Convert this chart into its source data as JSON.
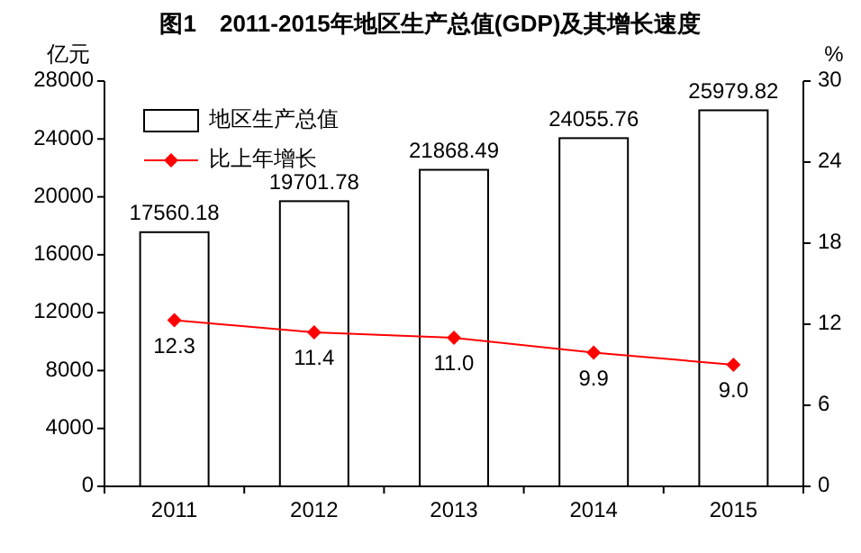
{
  "chart_data": {
    "type": "bar",
    "title": "图1　2011-2015年地区生产总值(GDP)及其增长速度",
    "ylabel": "亿元",
    "y2label": "%",
    "categories": [
      "2011",
      "2012",
      "2013",
      "2014",
      "2015"
    ],
    "series": [
      {
        "name": "地区生产总值",
        "color": "#ffffff",
        "values": [
          17560.18,
          19701.78,
          21868.49,
          24055.76,
          25979.82
        ],
        "value_labels": [
          "17560.18",
          "19701.78",
          "21868.49",
          "24055.76",
          "25979.82"
        ]
      },
      {
        "name": "比上年增长",
        "type": "line",
        "axis": "y2",
        "color": "#ff0000",
        "values": [
          12.3,
          11.4,
          11.0,
          9.9,
          9.0
        ],
        "value_labels": [
          "12.3",
          "11.4",
          "11.0",
          "9.9",
          "9.0"
        ]
      }
    ],
    "ylim": [
      0,
      28000
    ],
    "yticks": [
      0,
      4000,
      8000,
      12000,
      16000,
      20000,
      24000,
      28000
    ],
    "y2lim": [
      0,
      30
    ],
    "y2ticks": [
      0,
      6,
      12,
      18,
      24,
      30
    ],
    "legend": "top left",
    "marker": "diamond",
    "grid": false
  }
}
